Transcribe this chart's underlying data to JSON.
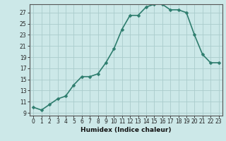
{
  "x": [
    0,
    1,
    2,
    3,
    4,
    5,
    6,
    7,
    8,
    9,
    10,
    11,
    12,
    13,
    14,
    15,
    16,
    17,
    18,
    19,
    20,
    21,
    22,
    23
  ],
  "y": [
    10.0,
    9.5,
    10.5,
    11.5,
    12.0,
    14.0,
    15.5,
    15.5,
    16.0,
    18.0,
    20.5,
    24.0,
    26.5,
    26.5,
    28.0,
    28.5,
    28.5,
    27.5,
    27.5,
    27.0,
    23.0,
    19.5,
    18.0,
    18.0
  ],
  "xlabel": "Humidex (Indice chaleur)",
  "ylim": [
    8.5,
    28.5
  ],
  "xlim": [
    -0.5,
    23.5
  ],
  "yticks": [
    9,
    11,
    13,
    15,
    17,
    19,
    21,
    23,
    25,
    27
  ],
  "xticks": [
    0,
    1,
    2,
    3,
    4,
    5,
    6,
    7,
    8,
    9,
    10,
    11,
    12,
    13,
    14,
    15,
    16,
    17,
    18,
    19,
    20,
    21,
    22,
    23
  ],
  "line_color": "#2e7d6e",
  "marker": "D",
  "marker_size": 2.5,
  "bg_color": "#cce8e8",
  "grid_color": "#aacccc",
  "line_width": 1.2,
  "tick_fontsize": 5.5,
  "xlabel_fontsize": 6.5
}
